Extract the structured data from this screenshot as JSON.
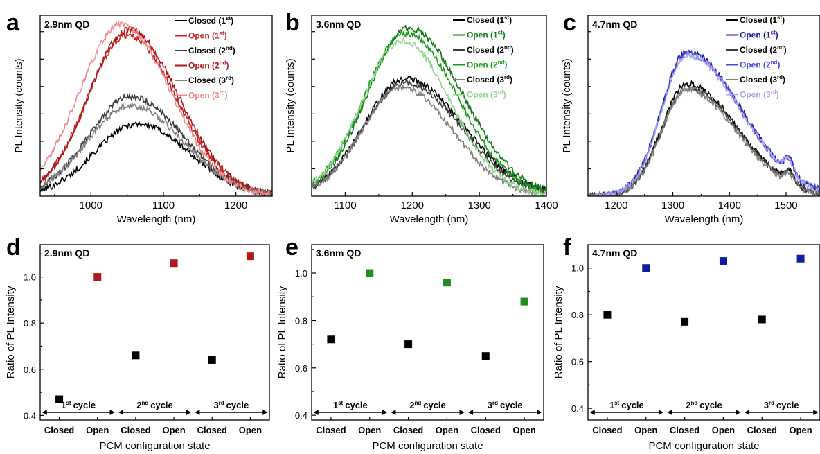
{
  "colors": {
    "black": "#000000",
    "dark_gray": "#3c3c3c",
    "gray": "#808080",
    "red": "#cc2020",
    "red_dark": "#b01818",
    "red_light": "#f08c8c",
    "green": "#1e9b1e",
    "green_dark": "#0f7a0f",
    "green_light": "#8fd68f",
    "blue": "#1c1ca0",
    "blue_mid": "#4a4ae0",
    "blue_light": "#a8a8ee",
    "marker_red": "#b11a1a",
    "marker_green": "#1f8f1f",
    "marker_blue": "#0e1e9e",
    "marker_black": "#000000"
  },
  "panels": [
    {
      "letter": "a",
      "qd": "2.9nm QD"
    },
    {
      "letter": "b",
      "qd": "3.6nm QD"
    },
    {
      "letter": "c",
      "qd": "4.7nm QD"
    },
    {
      "letter": "d",
      "qd": "2.9nm QD"
    },
    {
      "letter": "e",
      "qd": "3.6nm QD"
    },
    {
      "letter": "f",
      "qd": "4.7nm QD"
    }
  ],
  "legend_entries": [
    {
      "base": "Closed (1",
      "sup": "st",
      "close": ")"
    },
    {
      "base": "Open (1",
      "sup": "st",
      "close": ")"
    },
    {
      "base": "Closed (2",
      "sup": "nd",
      "close": ")"
    },
    {
      "base": "Open (2",
      "sup": "nd",
      "close": ")"
    },
    {
      "base": "Closed (3",
      "sup": "rd",
      "close": ")"
    },
    {
      "base": "Open (3",
      "sup": "rd",
      "close": ")"
    }
  ],
  "cycles": [
    {
      "num": "1",
      "sup": "st",
      "word": "cycle"
    },
    {
      "num": "2",
      "sup": "nd",
      "word": "cycle"
    },
    {
      "num": "3",
      "sup": "rd",
      "word": "cycle"
    }
  ],
  "chart_data": [
    {
      "panel": "a",
      "type": "line",
      "title": "2.9nm QD",
      "xlabel": "Wavelength (nm)",
      "ylabel": "PL Intensity (counts)",
      "xlim": [
        930,
        1250
      ],
      "ylim": [
        0,
        1.0
      ],
      "xticks": [
        1000,
        1100,
        1200
      ],
      "series": [
        {
          "name": "Closed (1st)",
          "color": "black",
          "peak_x": 1065,
          "peak_y": 0.4,
          "sigma_left": 60,
          "sigma_right": 70
        },
        {
          "name": "Open (1st)",
          "color": "red",
          "peak_x": 1050,
          "peak_y": 0.89,
          "sigma_left": 55,
          "sigma_right": 68
        },
        {
          "name": "Closed (2nd)",
          "color": "dark_gray",
          "peak_x": 1055,
          "peak_y": 0.55,
          "sigma_left": 58,
          "sigma_right": 72
        },
        {
          "name": "Open (2nd)",
          "color": "red_dark",
          "peak_x": 1052,
          "peak_y": 0.92,
          "sigma_left": 55,
          "sigma_right": 68
        },
        {
          "name": "Closed (3rd)",
          "color": "gray",
          "peak_x": 1055,
          "peak_y": 0.5,
          "sigma_left": 60,
          "sigma_right": 72
        },
        {
          "name": "Open (3rd)",
          "color": "red_light",
          "peak_x": 1042,
          "peak_y": 0.95,
          "sigma_left": 58,
          "sigma_right": 68
        }
      ]
    },
    {
      "panel": "b",
      "type": "line",
      "title": "3.6nm QD",
      "xlabel": "Wavelength (nm)",
      "ylabel": "PL Intensity (counts)",
      "xlim": [
        1050,
        1400
      ],
      "ylim": [
        0,
        1.0
      ],
      "xticks": [
        1100,
        1200,
        1300,
        1400
      ],
      "series": [
        {
          "name": "Closed (1st)",
          "color": "black",
          "peak_x": 1190,
          "peak_y": 0.65,
          "sigma_left": 62,
          "sigma_right": 85
        },
        {
          "name": "Open (1st)",
          "color": "green_dark",
          "peak_x": 1195,
          "peak_y": 0.93,
          "sigma_left": 62,
          "sigma_right": 80
        },
        {
          "name": "Closed (2nd)",
          "color": "dark_gray",
          "peak_x": 1190,
          "peak_y": 0.63,
          "sigma_left": 62,
          "sigma_right": 82
        },
        {
          "name": "Open (2nd)",
          "color": "green",
          "peak_x": 1190,
          "peak_y": 0.9,
          "sigma_left": 62,
          "sigma_right": 78
        },
        {
          "name": "Closed (3rd)",
          "color": "gray",
          "peak_x": 1185,
          "peak_y": 0.6,
          "sigma_left": 60,
          "sigma_right": 75
        },
        {
          "name": "Open (3rd)",
          "color": "green_light",
          "peak_x": 1185,
          "peak_y": 0.86,
          "sigma_left": 60,
          "sigma_right": 72
        }
      ]
    },
    {
      "panel": "c",
      "type": "line",
      "title": "4.7nm QD",
      "xlabel": "Wavelength (nm)",
      "ylabel": "PL Intensity (counts)",
      "xlim": [
        1150,
        1560
      ],
      "ylim": [
        0,
        1.0
      ],
      "xticks": [
        1200,
        1300,
        1400,
        1500
      ],
      "series": [
        {
          "name": "Closed (1st)",
          "color": "black",
          "peak_x": 1325,
          "peak_y": 0.62,
          "sigma_left": 45,
          "sigma_right": 90
        },
        {
          "name": "Open (1st)",
          "color": "blue",
          "peak_x": 1325,
          "peak_y": 0.8,
          "sigma_left": 45,
          "sigma_right": 95
        },
        {
          "name": "Closed (2nd)",
          "color": "dark_gray",
          "peak_x": 1325,
          "peak_y": 0.6,
          "sigma_left": 45,
          "sigma_right": 90
        },
        {
          "name": "Open (2nd)",
          "color": "blue_mid",
          "peak_x": 1325,
          "peak_y": 0.79,
          "sigma_left": 45,
          "sigma_right": 95
        },
        {
          "name": "Closed (3rd)",
          "color": "gray",
          "peak_x": 1325,
          "peak_y": 0.59,
          "sigma_left": 45,
          "sigma_right": 88
        },
        {
          "name": "Open (3rd)",
          "color": "blue_light",
          "peak_x": 1325,
          "peak_y": 0.78,
          "sigma_left": 45,
          "sigma_right": 95
        }
      ]
    },
    {
      "panel": "d",
      "type": "scatter",
      "title": "2.9nm QD",
      "xlabel": "PCM configuration state",
      "ylabel": "Ratio of PL Intensity",
      "categories": [
        "Closed",
        "Open",
        "Closed",
        "Open",
        "Closed",
        "Open"
      ],
      "ylim": [
        0.38,
        1.14
      ],
      "yticks": [
        "0.4",
        "0.6",
        "0.8",
        "1.0"
      ],
      "values": [
        0.47,
        1.0,
        0.66,
        1.06,
        0.64,
        1.09
      ],
      "open_color": "marker_red"
    },
    {
      "panel": "e",
      "type": "scatter",
      "title": "3.6nm QD",
      "xlabel": "PCM configuration state",
      "ylabel": "Ratio of PL Intensity",
      "categories": [
        "Closed",
        "Open",
        "Closed",
        "Open",
        "Closed",
        "Open"
      ],
      "ylim": [
        0.38,
        1.12
      ],
      "yticks": [
        "0.4",
        "0.6",
        "0.8",
        "1.0"
      ],
      "values": [
        0.72,
        1.0,
        0.7,
        0.96,
        0.65,
        0.88
      ],
      "open_color": "marker_green"
    },
    {
      "panel": "f",
      "type": "scatter",
      "title": "4.7nm QD",
      "xlabel": "PCM configuration state",
      "ylabel": "Ratio of PL Intensity",
      "categories": [
        "Closed",
        "Open",
        "Closed",
        "Open",
        "Closed",
        "Open"
      ],
      "ylim": [
        0.35,
        1.1
      ],
      "yticks": [
        "0.4",
        "0.6",
        "0.8",
        "1.0"
      ],
      "values": [
        0.8,
        1.0,
        0.77,
        1.03,
        0.78,
        1.04
      ],
      "open_color": "marker_blue"
    }
  ]
}
